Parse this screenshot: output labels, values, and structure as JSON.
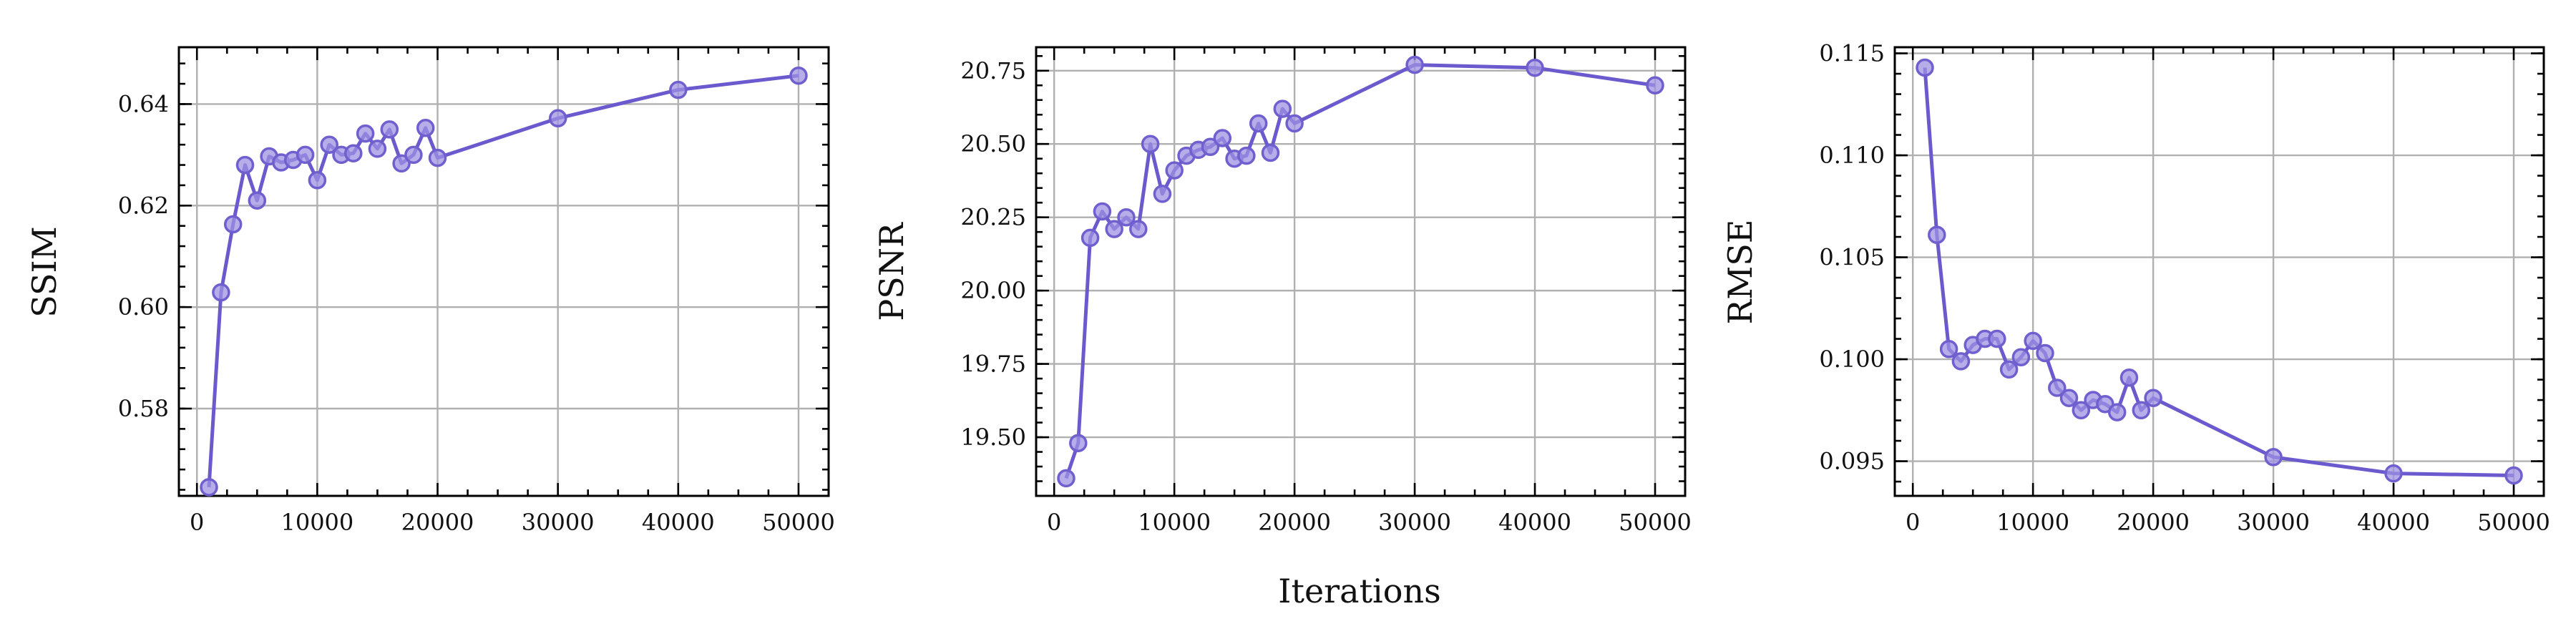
{
  "colors": {
    "line": "#6a5acd",
    "marker_fill": "#9f91e2",
    "marker_edge": "#6f5fcf",
    "grid": "#b0b0b0"
  },
  "shared_xlabel": "Iterations",
  "chart_data": [
    {
      "type": "line",
      "ylabel": "SSIM",
      "xlabel": "",
      "grid": true,
      "xlim": [
        -1500,
        52500
      ],
      "ylim": [
        0.5628,
        0.6512
      ],
      "xticks": [
        0,
        10000,
        20000,
        30000,
        40000,
        50000
      ],
      "xtick_labels": [
        "0",
        "10000",
        "20000",
        "30000",
        "40000",
        "50000"
      ],
      "yticks": [
        0.58,
        0.6,
        0.62,
        0.64
      ],
      "ytick_labels": [
        "0.58",
        "0.60",
        "0.62",
        "0.64"
      ],
      "x": [
        1000,
        2000,
        3000,
        4000,
        5000,
        6000,
        7000,
        8000,
        9000,
        10000,
        11000,
        12000,
        13000,
        14000,
        15000,
        16000,
        17000,
        18000,
        19000,
        20000,
        30000,
        40000,
        50000
      ],
      "y": [
        0.5645,
        0.6029,
        0.6163,
        0.628,
        0.621,
        0.6297,
        0.6285,
        0.629,
        0.63,
        0.625,
        0.632,
        0.63,
        0.6303,
        0.6342,
        0.6312,
        0.635,
        0.6283,
        0.63,
        0.6353,
        0.6294,
        0.6372,
        0.6428,
        0.6456
      ]
    },
    {
      "type": "line",
      "ylabel": "PSNR",
      "xlabel": "",
      "grid": true,
      "xlim": [
        -1500,
        52500
      ],
      "ylim": [
        19.3,
        20.83
      ],
      "xticks": [
        0,
        10000,
        20000,
        30000,
        40000,
        50000
      ],
      "xtick_labels": [
        "0",
        "10000",
        "20000",
        "30000",
        "40000",
        "50000"
      ],
      "yticks": [
        19.5,
        19.75,
        20.0,
        20.25,
        20.5,
        20.75
      ],
      "ytick_labels": [
        "19.50",
        "19.75",
        "20.00",
        "20.25",
        "20.50",
        "20.75"
      ],
      "x": [
        1000,
        2000,
        3000,
        4000,
        5000,
        6000,
        7000,
        8000,
        9000,
        10000,
        11000,
        12000,
        13000,
        14000,
        15000,
        16000,
        17000,
        18000,
        19000,
        20000,
        30000,
        40000,
        50000
      ],
      "y": [
        19.36,
        19.48,
        20.18,
        20.27,
        20.21,
        20.25,
        20.21,
        20.5,
        20.33,
        20.41,
        20.46,
        20.48,
        20.49,
        20.52,
        20.45,
        20.46,
        20.57,
        20.47,
        20.62,
        20.57,
        20.77,
        20.76,
        20.7
      ]
    },
    {
      "type": "line",
      "ylabel": "RMSE",
      "xlabel": "",
      "grid": true,
      "xlim": [
        -1500,
        52500
      ],
      "ylim": [
        0.0933,
        0.1153
      ],
      "xticks": [
        0,
        10000,
        20000,
        30000,
        40000,
        50000
      ],
      "xtick_labels": [
        "0",
        "10000",
        "20000",
        "30000",
        "40000",
        "50000"
      ],
      "yticks": [
        0.095,
        0.1,
        0.105,
        0.11,
        0.115
      ],
      "ytick_labels": [
        "0.095",
        "0.100",
        "0.105",
        "0.110",
        "0.115"
      ],
      "x": [
        1000,
        2000,
        3000,
        4000,
        5000,
        6000,
        7000,
        8000,
        9000,
        10000,
        11000,
        12000,
        13000,
        14000,
        15000,
        16000,
        17000,
        18000,
        19000,
        20000,
        30000,
        40000,
        50000
      ],
      "y": [
        0.1143,
        0.1061,
        0.1005,
        0.0999,
        0.1007,
        0.101,
        0.101,
        0.0995,
        0.1001,
        0.1009,
        0.1003,
        0.0986,
        0.0981,
        0.0975,
        0.098,
        0.0978,
        0.0974,
        0.0991,
        0.0975,
        0.0981,
        0.0952,
        0.0944,
        0.0943
      ]
    }
  ]
}
